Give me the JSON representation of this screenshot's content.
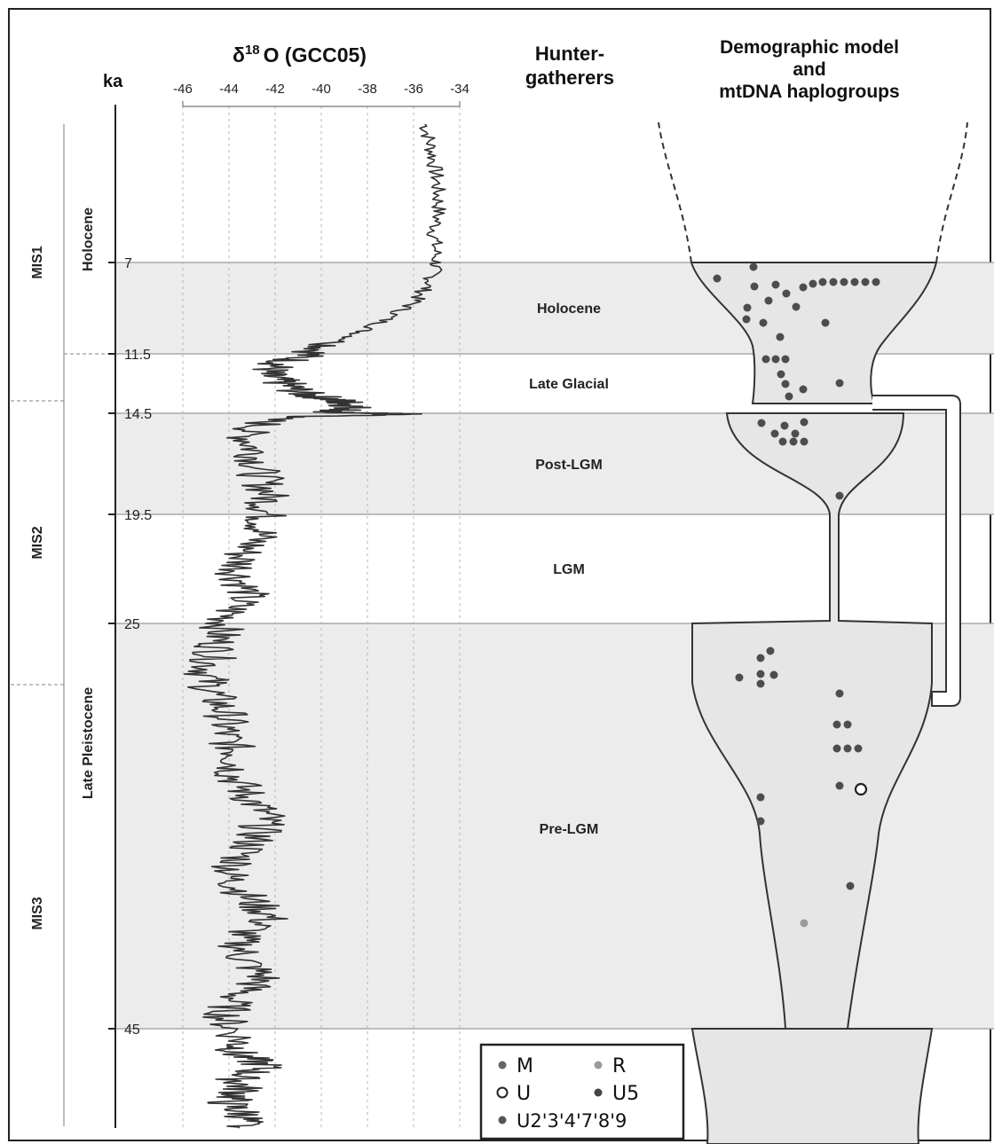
{
  "header": {
    "delta_prefix": "δ",
    "delta_superscript": "18",
    "delta_suffix": "O (GCC05)",
    "hunter_line1": "Hunter-",
    "hunter_line2": "gatherers",
    "demo_line1": "Demographic model",
    "demo_line2": "and",
    "demo_line3": "mtDNA haplogroups",
    "ka_label": "ka"
  },
  "periods": {
    "holocene": "Holocene",
    "late_pleistocene": "Late Pleistocene"
  },
  "stages": {
    "mis1": "MIS1",
    "mis2": "MIS2",
    "mis3": "MIS3"
  },
  "bands": {
    "holocene": "Holocene",
    "late_glacial": "Late Glacial",
    "post_lgm": "Post-LGM",
    "lgm": "LGM",
    "pre_lgm": "Pre-LGM"
  },
  "legend": {
    "M": "M",
    "R": "R",
    "U": "U",
    "U5": "U5",
    "U2": "U2'3'4'7'8'9"
  },
  "colors": {
    "band_fill": "#ececec",
    "funnel_fill": "#e6e6e6",
    "series": "#333333",
    "dot_dark": "#4d4d4d",
    "dot_R": "#9a9a9a"
  },
  "chart_data": {
    "type": "line",
    "title": "δ18O (GCC05)",
    "x_axis_ticks": [
      -46,
      -44,
      -42,
      -40,
      -38,
      -36,
      -34
    ],
    "y_axis_label": "ka",
    "y_axis_ticks": [
      "7",
      "11.5",
      "14.5",
      "19.5",
      "25",
      "45"
    ],
    "xlim": [
      -46,
      -34
    ],
    "series": [
      {
        "x": [
          -35.5,
          -35.2,
          -35.0,
          -34.9,
          -35.1,
          -35.0,
          -35.3,
          -36.0,
          -37.5,
          -39.0,
          -40.5,
          -41.8,
          -42.5,
          -41.6,
          -40.8,
          -39.5,
          -38.8,
          -38.6,
          -40.0,
          -37.5,
          -36.2,
          -42.0,
          -43.3,
          -42.8,
          -42.7,
          -42.3,
          -42.4,
          -42.6,
          -43.4,
          -43.6,
          -43.2,
          -44.0,
          -44.4,
          -44.6,
          -45.0,
          -44.7,
          -44.1,
          -44.2,
          -43.6,
          -43.8,
          -43.2,
          -42.4,
          -42.8,
          -43.5,
          -44.0,
          -43.2,
          -42.2,
          -43.6,
          -43.4,
          -42.5,
          -43.8,
          -44.2,
          -43.5,
          -43.7,
          -42.4,
          -43.6,
          -43.4,
          -44.1,
          -43.2,
          -43.6
        ],
        "y": [
          4.5,
          5.0,
          5.5,
          6.0,
          6.5,
          7.0,
          8.0,
          9.0,
          10.0,
          10.8,
          11.5,
          12.0,
          12.5,
          13.0,
          13.5,
          13.8,
          14.0,
          14.3,
          14.45,
          14.5,
          14.55,
          14.7,
          15.5,
          16.5,
          17.5,
          18.5,
          19.5,
          20.5,
          21.5,
          22.5,
          23.5,
          24.5,
          25.5,
          26.5,
          27.5,
          28.5,
          29.5,
          30.5,
          31.5,
          32.5,
          33.5,
          34.5,
          35.5,
          36.5,
          37.5,
          38.5,
          39.5,
          40.5,
          41.5,
          42.5,
          43.5,
          44.5,
          45.5,
          46.0,
          46.5,
          47.0,
          47.5,
          48.0,
          48.5,
          49.0
        ]
      }
    ],
    "haplogroup_legend": [
      "M",
      "R",
      "U",
      "U5",
      "U2'3'4'7'8'9"
    ]
  }
}
